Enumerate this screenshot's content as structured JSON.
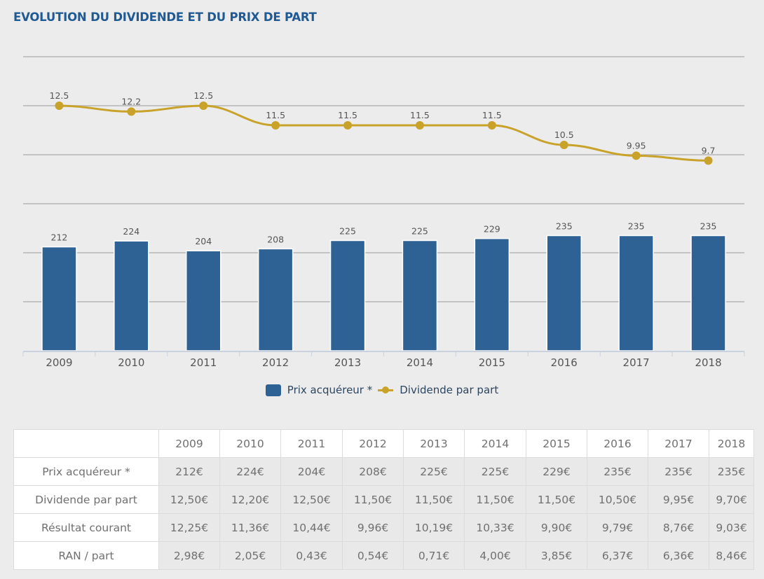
{
  "title": "EVOLUTION DU DIVIDENDE ET DU PRIX DE PART",
  "colors": {
    "title": "#1f5a94",
    "bar": "#2e6295",
    "line": "#c9a22a"
  },
  "chart_data": {
    "type": "bar",
    "title": "EVOLUTION DU DIVIDENDE ET DU PRIX DE PART",
    "categories": [
      "2009",
      "2010",
      "2011",
      "2012",
      "2013",
      "2014",
      "2015",
      "2016",
      "2017",
      "2018"
    ],
    "series": [
      {
        "name": "Prix acquéreur *",
        "type": "bar",
        "axis": "left",
        "color": "#2e6295",
        "values": [
          212,
          224,
          204,
          208,
          225,
          225,
          229,
          235,
          235,
          235
        ],
        "labels": [
          "212",
          "224",
          "204",
          "208",
          "225",
          "225",
          "229",
          "235",
          "235",
          "235"
        ]
      },
      {
        "name": "Dividende par part",
        "type": "line",
        "axis": "right",
        "color": "#c9a22a",
        "values": [
          12.5,
          12.2,
          12.5,
          11.5,
          11.5,
          11.5,
          11.5,
          10.5,
          9.95,
          9.7
        ],
        "labels": [
          "12.5",
          "12.2",
          "12.5",
          "11.5",
          "11.5",
          "11.5",
          "11.5",
          "10.5",
          "9.95",
          "9.7"
        ]
      }
    ],
    "left_axis": {
      "range": [
        0,
        600
      ],
      "gridlines": [
        0,
        100,
        200,
        300,
        400,
        500,
        600
      ],
      "tick_labels_visible": false
    },
    "right_axis": {
      "range": [
        0,
        15
      ],
      "tick_labels_visible": false
    },
    "grid": true,
    "xlabel": "",
    "ylabel": "",
    "legend": {
      "position": "bottom-center",
      "items": [
        "Prix acquéreur *",
        "Dividende par part"
      ]
    }
  },
  "table": {
    "columns": [
      "2009",
      "2010",
      "2011",
      "2012",
      "2013",
      "2014",
      "2015",
      "2016",
      "2017",
      "2018"
    ],
    "rows": [
      {
        "label": "Prix acquéreur *",
        "values": [
          "212€",
          "224€",
          "204€",
          "208€",
          "225€",
          "225€",
          "229€",
          "235€",
          "235€",
          "235€"
        ]
      },
      {
        "label": "Dividende par part",
        "values": [
          "12,50€",
          "12,20€",
          "12,50€",
          "11,50€",
          "11,50€",
          "11,50€",
          "11,50€",
          "10,50€",
          "9,95€",
          "9,70€"
        ]
      },
      {
        "label": "Résultat courant",
        "values": [
          "12,25€",
          "11,36€",
          "10,44€",
          "9,96€",
          "10,19€",
          "10,33€",
          "9,90€",
          "9,79€",
          "8,76€",
          "9,03€"
        ]
      },
      {
        "label": "RAN / part",
        "values": [
          "2,98€",
          "2,05€",
          "0,43€",
          "0,54€",
          "0,71€",
          "4,00€",
          "3,85€",
          "6,37€",
          "6,36€",
          "8,46€"
        ]
      }
    ]
  }
}
